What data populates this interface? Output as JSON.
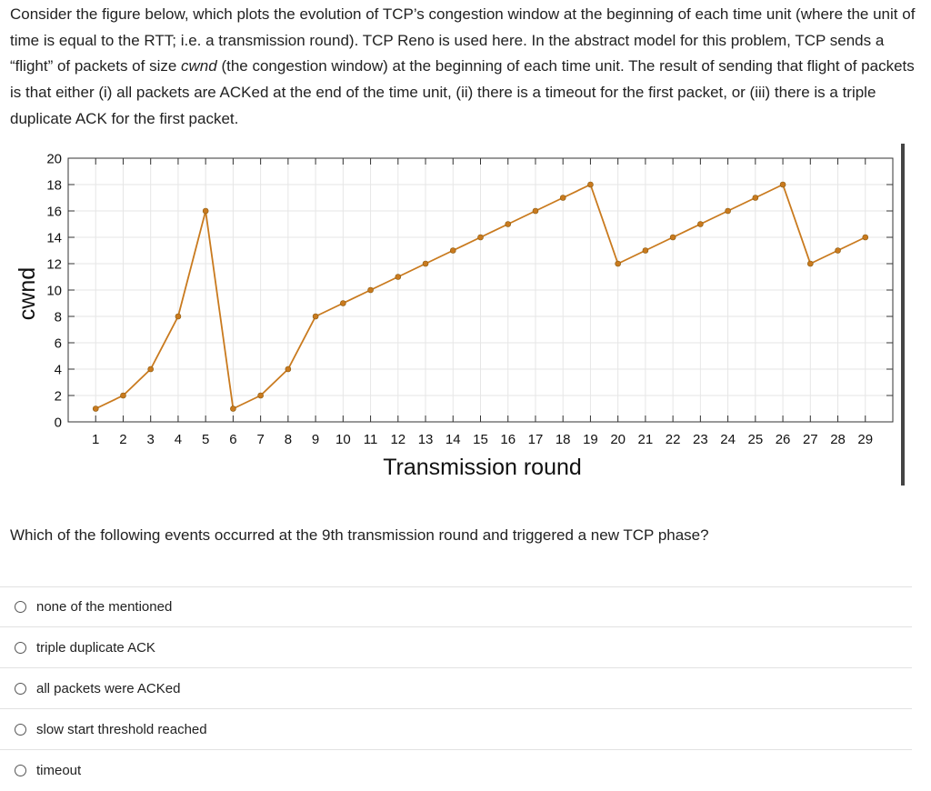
{
  "intro": {
    "part1": "Consider the figure below, which plots the evolution of TCP’s congestion window at the beginning of each time unit (where the unit of time is equal to the RTT; i.e. a transmission round). TCP Reno is used here. In the abstract model for this problem, TCP sends a “flight” of packets of size ",
    "cwnd_italic": "cwnd",
    "part2": " (the congestion window) at the beginning of each time unit. The result of sending that flight of packets is that either (i) all packets are ACKed at the end of the time unit, (ii) there is a timeout for the first packet, or (iii) there is a triple duplicate ACK for the first packet."
  },
  "chart_data": {
    "type": "line",
    "xlabel": "Transmission round",
    "ylabel": "cwnd",
    "x": [
      1,
      2,
      3,
      4,
      5,
      6,
      7,
      8,
      9,
      10,
      11,
      12,
      13,
      14,
      15,
      16,
      17,
      18,
      19,
      20,
      21,
      22,
      23,
      24,
      25,
      26,
      27,
      28,
      29
    ],
    "series": [
      {
        "values": [
          1,
          2,
          4,
          8,
          16,
          1,
          2,
          4,
          8,
          9,
          10,
          11,
          12,
          13,
          14,
          15,
          16,
          17,
          18,
          12,
          13,
          14,
          15,
          16,
          17,
          18,
          12,
          13,
          14
        ]
      }
    ],
    "xlim": [
      0,
      30
    ],
    "ylim": [
      0,
      20
    ],
    "yticks": [
      0,
      2,
      4,
      6,
      8,
      10,
      12,
      14,
      16,
      18,
      20
    ],
    "xtick_labels": [
      "1",
      "2",
      "3",
      "4",
      "5",
      "6",
      "7",
      "8",
      "9",
      "10",
      "11",
      "12",
      "13",
      "14",
      "15",
      "16",
      "17",
      "18",
      "19",
      "20",
      "21",
      "22",
      "23",
      "24",
      "25",
      "26",
      "27",
      "28",
      "29"
    ],
    "ytick_labels": [
      "0",
      "2",
      "4",
      "6",
      "8",
      "10",
      "12",
      "14",
      "16",
      "18",
      "20"
    ],
    "grid": true,
    "line_color": "#c97a1e",
    "marker_color": "#c97a1e"
  },
  "question": "Which of the following events occurred at the 9th transmission round and triggered a new TCP phase?",
  "options": [
    {
      "label": "none of the mentioned"
    },
    {
      "label": "triple duplicate ACK"
    },
    {
      "label": "all packets were ACKed"
    },
    {
      "label": "slow start threshold reached"
    },
    {
      "label": "timeout"
    }
  ]
}
